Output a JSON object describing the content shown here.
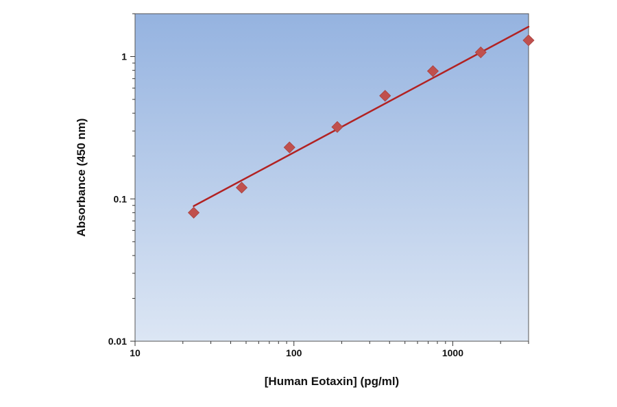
{
  "chart_data": {
    "type": "scatter",
    "title": "",
    "xlabel": "[Human Eotaxin] (pg/ml)",
    "ylabel": "Absorbance (450 nm)",
    "x_scale": "log",
    "y_scale": "log",
    "xlim": [
      10,
      3000
    ],
    "ylim": [
      0.01,
      2
    ],
    "x_ticks": [
      {
        "value": 10,
        "label": "10"
      },
      {
        "value": 100,
        "label": "100"
      },
      {
        "value": 1000,
        "label": "1000"
      }
    ],
    "y_ticks": [
      {
        "value": 0.01,
        "label": "0.01"
      },
      {
        "value": 0.1,
        "label": "0.1"
      },
      {
        "value": 1,
        "label": "1"
      }
    ],
    "grid": false,
    "legend": "none",
    "series": [
      {
        "marker": "diamond",
        "color": "#c0504d",
        "x": [
          23.4,
          46.9,
          93.8,
          187.5,
          375,
          750,
          1500,
          3000
        ],
        "y": [
          0.08,
          0.12,
          0.23,
          0.32,
          0.53,
          0.79,
          1.07,
          1.3
        ]
      }
    ],
    "fit_line": {
      "color": "#b22222",
      "x": [
        23.4,
        3000
      ],
      "y": [
        0.089,
        1.62
      ]
    },
    "plot_background": {
      "top": "#95b3e0",
      "bottom": "#dce6f4"
    }
  }
}
